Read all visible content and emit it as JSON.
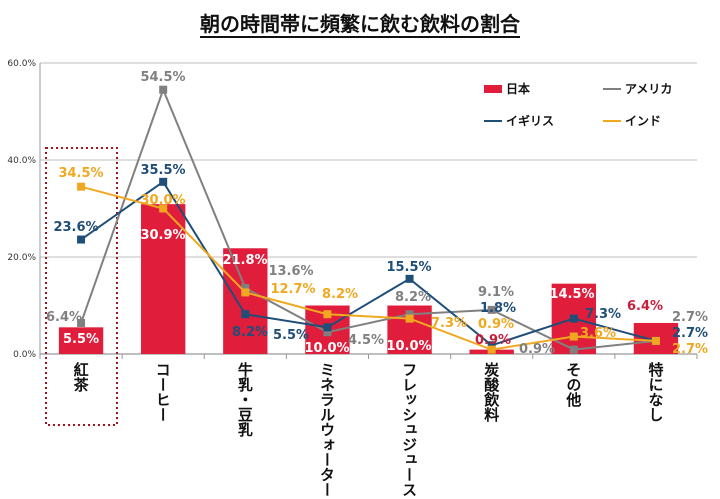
{
  "chart_data": {
    "type": "bar+line",
    "title": "朝の時間帯に頻繁に飲む飲料の割合",
    "categories": [
      "紅茶",
      "コーヒー",
      "牛乳・豆乳",
      "ミネラルウォーター",
      "フレッシュジュース",
      "炭酸飲料",
      "その他",
      "特になし"
    ],
    "ylim": [
      0,
      60
    ],
    "yticks": [
      "0.0%",
      "20.0%",
      "40.0%",
      "60.0%"
    ],
    "grid": true,
    "legend_position": "top-right",
    "highlighted_category": "紅茶",
    "series": [
      {
        "name": "日本",
        "type": "bar",
        "color": "#e01e3c",
        "values": [
          5.5,
          30.9,
          21.8,
          10.0,
          10.0,
          0.9,
          14.5,
          6.4
        ],
        "labels": [
          "5.5%",
          "30.9%",
          "21.8%",
          "10.0%",
          "10.0%",
          "0.9%",
          "14.5%",
          "6.4%"
        ]
      },
      {
        "name": "アメリカ",
        "type": "line",
        "color": "#808080",
        "values": [
          6.4,
          54.5,
          13.6,
          4.5,
          8.2,
          9.1,
          0.9,
          2.7
        ],
        "labels": [
          "6.4%",
          "54.5%",
          "13.6%",
          "4.5%",
          "8.2%",
          "9.1%",
          "0.9%",
          "2.7%"
        ]
      },
      {
        "name": "イギリス",
        "type": "line",
        "color": "#1f4e79",
        "values": [
          23.6,
          35.5,
          8.2,
          5.5,
          15.5,
          1.8,
          7.3,
          2.7
        ],
        "labels": [
          "23.6%",
          "35.5%",
          "8.2%",
          "5.5%",
          "15.5%",
          "1.8%",
          "7.3%",
          "2.7%"
        ]
      },
      {
        "name": "インド",
        "type": "line",
        "color": "#f0a820",
        "values": [
          34.5,
          30.0,
          12.7,
          8.2,
          7.3,
          0.9,
          3.6,
          2.7
        ],
        "labels": [
          "34.5%",
          "30.0%",
          "12.7%",
          "8.2%",
          "7.3%",
          "0.9%",
          "3.6%",
          "2.7%"
        ]
      }
    ]
  }
}
